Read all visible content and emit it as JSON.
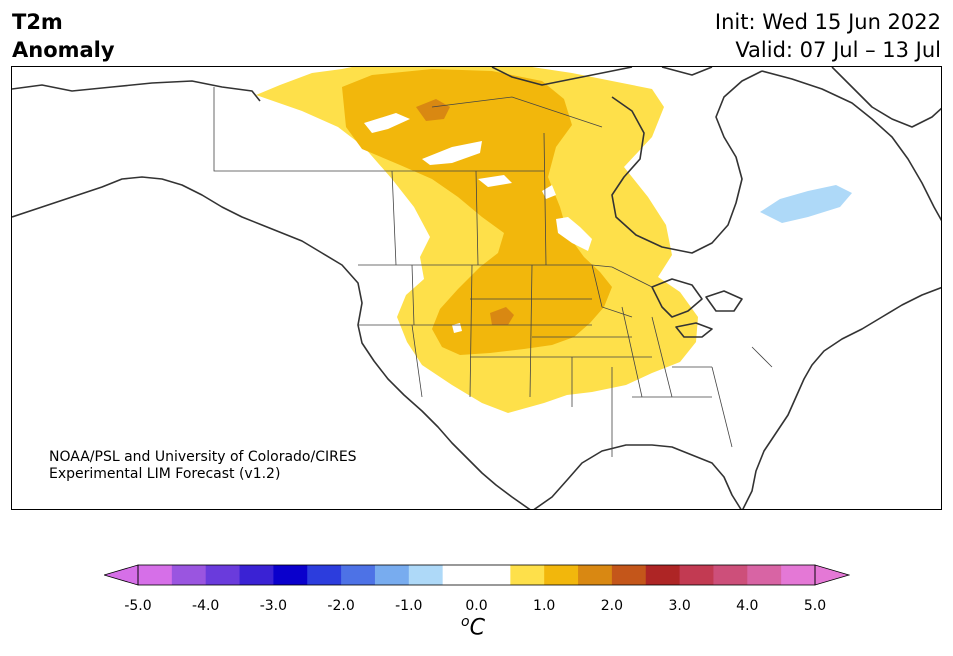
{
  "title": {
    "line1": "T2m",
    "line2": "Anomaly"
  },
  "forecast": {
    "init": "Init: Wed 15 Jun 2022",
    "valid": "Valid: 07 Jul – 13 Jul"
  },
  "credit": {
    "line1": "NOAA/PSL and University of Colorado/CIRES",
    "line2": "Experimental LIM Forecast (v1.2)"
  },
  "colorbar": {
    "unit_base": "C",
    "unit_sup": "o",
    "ticks": [
      "-5.0",
      "-4.0",
      "-3.0",
      "-2.0",
      "-1.0",
      "0.0",
      "1.0",
      "2.0",
      "3.0",
      "4.0",
      "5.0"
    ],
    "colors": [
      "#d66fe8",
      "#9a55e0",
      "#6a3bdc",
      "#3a22d4",
      "#0a00cc",
      "#2c3ddd",
      "#4d72e6",
      "#78acef",
      "#aed9f8",
      "#ffffff",
      "#ffffff",
      "#fee04a",
      "#f2b70c",
      "#d98812",
      "#c4561a",
      "#ae2525",
      "#c23a52",
      "#cd4f7a",
      "#d864a4",
      "#e478d6"
    ],
    "under_color": "#d66fe8",
    "over_color": "#e478d6"
  },
  "map": {
    "ocean_color": "#ffffff",
    "coast_color": "#333333",
    "anomaly_colors": {
      "weak_warm": "#fee04a",
      "moderate_warm": "#f2b70c",
      "strong_warm": "#d98812",
      "weak_cool": "#aed9f8"
    }
  }
}
